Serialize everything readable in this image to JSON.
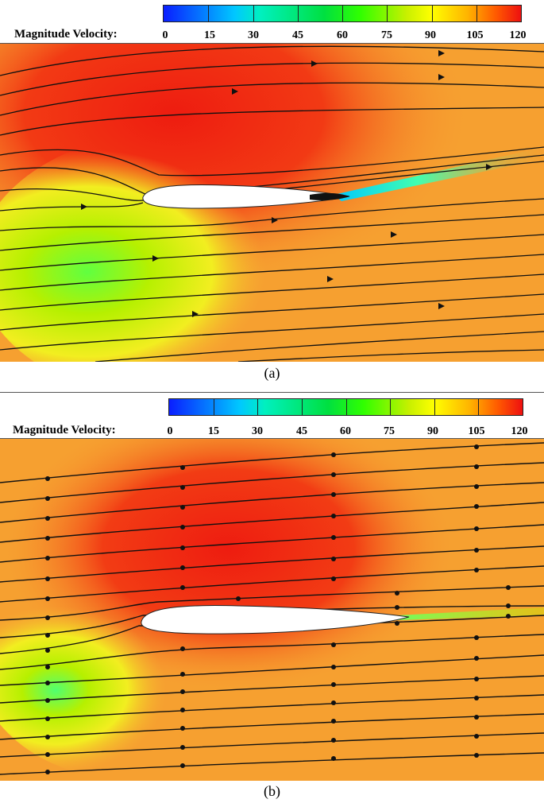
{
  "legend_title": "Magnitude Velocity:",
  "legend_ticks": [
    "0",
    "15",
    "30",
    "45",
    "60",
    "75",
    "90",
    "105",
    "120"
  ],
  "panels": [
    {
      "caption": "(a)"
    },
    {
      "caption": "(b)"
    }
  ],
  "colors": {
    "background_field": "#f6a030",
    "high_velocity": "#ee2010",
    "low_velocity": "#00c8ff",
    "mid_velocity": "#b0f000"
  }
}
